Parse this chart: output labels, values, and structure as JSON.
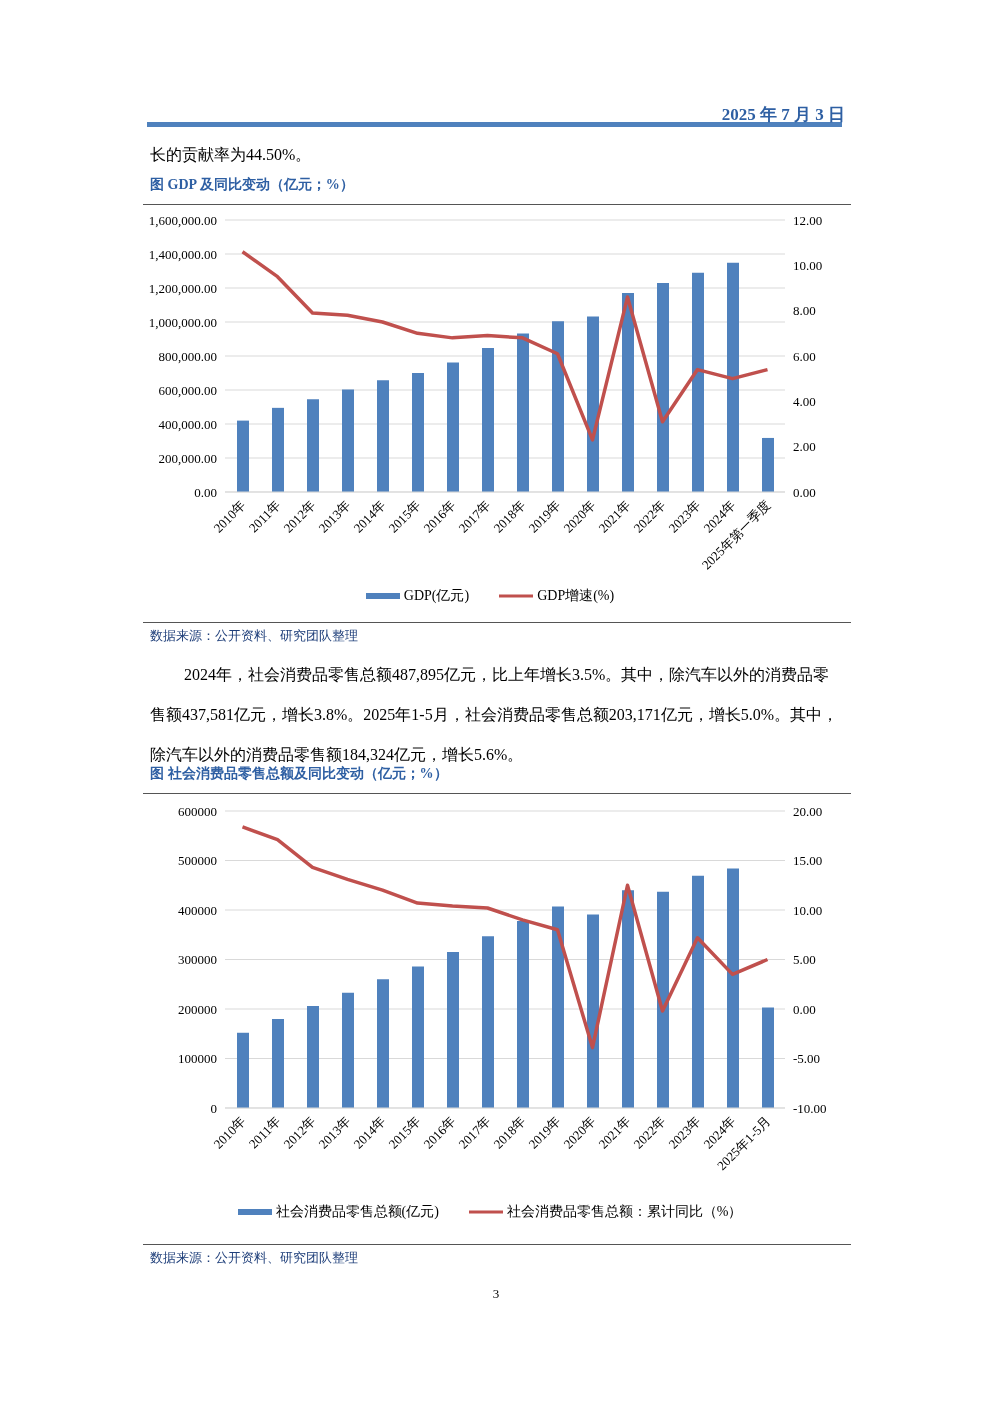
{
  "chart_data": [
    {
      "type": "bar",
      "title": "图  GDP 及同比变动（亿元；%）",
      "categories": [
        "2010年",
        "2011年",
        "2012年",
        "2013年",
        "2014年",
        "2015年",
        "2016年",
        "2017年",
        "2018年",
        "2019年",
        "2020年",
        "2021年",
        "2022年",
        "2023年",
        "2024年",
        "2025年第一季度"
      ],
      "series": [
        {
          "name": "GDP(亿元)",
          "color": "#4f81bd",
          "values": [
            420000,
            495000,
            545000,
            603000,
            657000,
            700000,
            762000,
            847000,
            932000,
            1005000,
            1032000,
            1170000,
            1230000,
            1290000,
            1348000,
            318000
          ]
        },
        {
          "name": "GDP增速(%)",
          "type": "line",
          "axis": "y2",
          "color": "#c0504d",
          "values": [
            10.6,
            9.5,
            7.9,
            7.8,
            7.5,
            7.0,
            6.8,
            6.9,
            6.8,
            6.1,
            2.3,
            8.6,
            3.1,
            5.4,
            5.0,
            5.4
          ]
        }
      ],
      "ylim": [
        0,
        1600000
      ],
      "yticks": [
        {
          "value": 0,
          "label": "0.00"
        },
        {
          "value": 200000,
          "label": "200,000.00"
        },
        {
          "value": 400000,
          "label": "400,000.00"
        },
        {
          "value": 600000,
          "label": "600,000.00"
        },
        {
          "value": 800000,
          "label": "800,000.00"
        },
        {
          "value": 1000000,
          "label": "1,000,000.00"
        },
        {
          "value": 1200000,
          "label": "1,200,000.00"
        },
        {
          "value": 1400000,
          "label": "1,400,000.00"
        },
        {
          "value": 1600000,
          "label": "1,600,000.00"
        }
      ],
      "y2lim": [
        0,
        12
      ],
      "y2ticks": [
        {
          "value": 0,
          "label": "0.00"
        },
        {
          "value": 2,
          "label": "2.00"
        },
        {
          "value": 4,
          "label": "4.00"
        },
        {
          "value": 6,
          "label": "6.00"
        },
        {
          "value": 8,
          "label": "8.00"
        },
        {
          "value": 10,
          "label": "10.00"
        },
        {
          "value": 12,
          "label": "12.00"
        }
      ],
      "grid": "y",
      "legend": "bottom",
      "marker": "none",
      "annotations": [
        "2025 年 7 月 3 日",
        "长的贡献率为44.50%。",
        "数据来源：公开资料、研究团队整理"
      ]
    },
    {
      "type": "bar",
      "title": "图 社会消费品零售总额及同比变动（亿元；%）",
      "categories": [
        "2010年",
        "2011年",
        "2012年",
        "2013年",
        "2014年",
        "2015年",
        "2016年",
        "2017年",
        "2018年",
        "2019年",
        "2020年",
        "2021年",
        "2022年",
        "2023年",
        "2024年",
        "2025年1-5月"
      ],
      "series": [
        {
          "name": "社会消费品零售总额(亿元)",
          "color": "#4f81bd",
          "values": [
            152000,
            180000,
            206000,
            233000,
            260000,
            286000,
            315000,
            347000,
            378000,
            407000,
            391000,
            440000,
            437000,
            469000,
            484000,
            203000
          ]
        },
        {
          "name": "社会消费品零售总额：累计同比（%）",
          "type": "line",
          "axis": "y2",
          "color": "#c0504d",
          "values": [
            18.4,
            17.1,
            14.3,
            13.1,
            12.0,
            10.7,
            10.4,
            10.2,
            9.0,
            8.0,
            -3.9,
            12.5,
            -0.2,
            7.2,
            3.5,
            5.0
          ]
        }
      ],
      "ylim": [
        0,
        600000
      ],
      "yticks": [
        0,
        100000,
        200000,
        300000,
        400000,
        500000,
        600000
      ],
      "y2lim": [
        -10,
        20
      ],
      "y2ticks": [
        {
          "value": -10,
          "label": "-10.00"
        },
        {
          "value": -5,
          "label": "-5.00"
        },
        {
          "value": 0,
          "label": "0.00"
        },
        {
          "value": 5,
          "label": "5.00"
        },
        {
          "value": 10,
          "label": "10.00"
        },
        {
          "value": 15,
          "label": "15.00"
        },
        {
          "value": 20,
          "label": "20.00"
        }
      ],
      "grid": "y",
      "legend": "bottom",
      "marker": "none",
      "annotations": [
        "2024年，社会消费品零售总额487,895亿元，比上年增长3.5%。其中，除汽车以外的消费品零售额437,581亿元，增长3.8%。2025年1-5月，社会消费品零售总额203,171亿元，增长5.0%。其中，除汽车以外的消费品零售额184,324亿元，增长5.6%。",
        "数据来源：公开资料、研究团队整理",
        "3"
      ]
    }
  ]
}
